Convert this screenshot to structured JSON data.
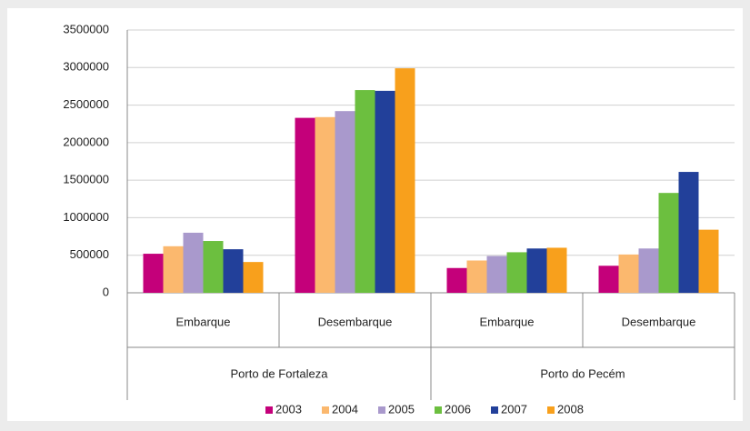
{
  "chart_data": {
    "type": "bar",
    "categories": [
      "Embarque",
      "Desembarque",
      "Embarque",
      "Desembarque"
    ],
    "groups": [
      "Porto de Fortaleza",
      "Porto do Pecém"
    ],
    "series": [
      {
        "name": "2003",
        "color": "#c4007a",
        "values": [
          520000,
          2330000,
          330000,
          360000
        ]
      },
      {
        "name": "2004",
        "color": "#fbb86e",
        "values": [
          620000,
          2340000,
          430000,
          510000
        ]
      },
      {
        "name": "2005",
        "color": "#a999cc",
        "values": [
          800000,
          2420000,
          490000,
          590000
        ]
      },
      {
        "name": "2006",
        "color": "#6cbf3f",
        "values": [
          690000,
          2700000,
          540000,
          1330000
        ]
      },
      {
        "name": "2007",
        "color": "#22409a",
        "values": [
          580000,
          2690000,
          590000,
          1610000
        ]
      },
      {
        "name": "2008",
        "color": "#f8a01c",
        "values": [
          410000,
          2990000,
          600000,
          840000
        ]
      }
    ],
    "ylim": [
      0,
      3500000
    ],
    "yticks": [
      0,
      500000,
      1000000,
      1500000,
      2000000,
      2500000,
      3000000,
      3500000
    ],
    "grid": true,
    "legend": "bottom"
  }
}
